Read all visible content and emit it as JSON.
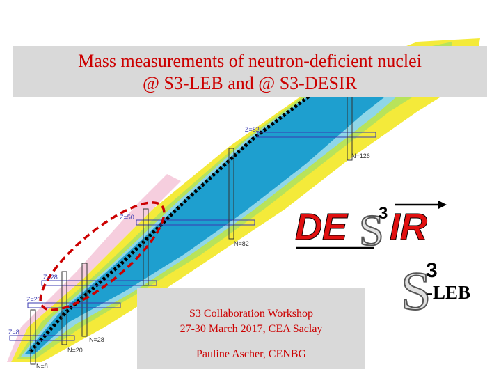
{
  "title": {
    "line1": "Mass measurements of neutron-deficient nuclei",
    "line2": "@ S3-LEB and @ S3-DESIR"
  },
  "info": {
    "event": "S3 Collaboration Workshop",
    "dates": "27-30 March 2017, CEA Saclay",
    "author": "Pauline Ascher, CENBG"
  },
  "magic_labels": {
    "z82": "Z=82",
    "n126": "N=126",
    "z50": "Z=50",
    "n82": "N=82",
    "z28": "Z=28",
    "z20": "Z=20",
    "n28": "N=28",
    "z8": "Z=8",
    "n20": "N=20",
    "n8": "N=8"
  },
  "logos": {
    "desir": "DESIR",
    "s3leb_suffix": "-LEB"
  },
  "colors": {
    "title_text": "#cc0000",
    "highlight_ellipse": "#cc0000",
    "desir_red": "#e01010"
  }
}
